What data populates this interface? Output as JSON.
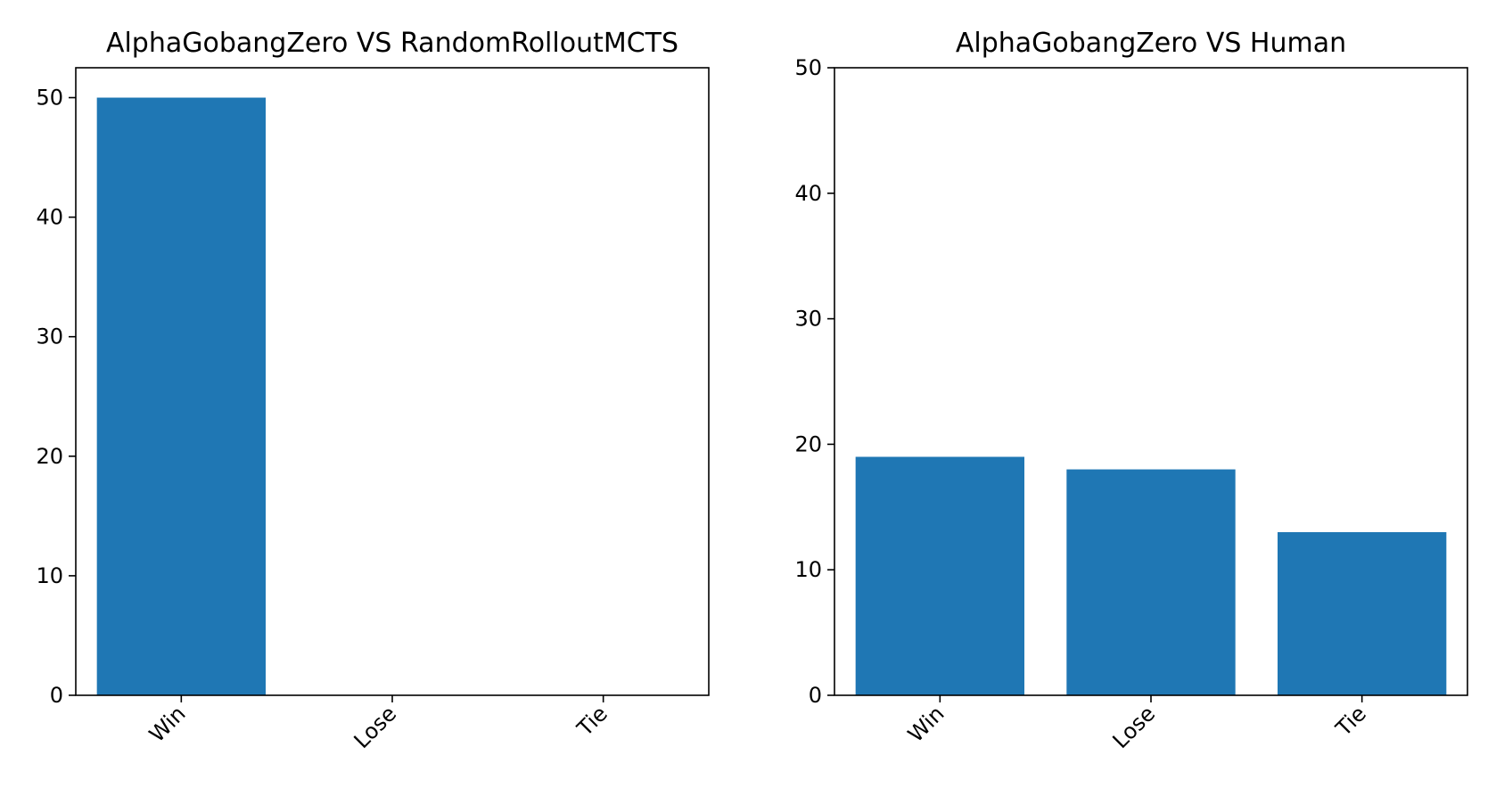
{
  "chart_data": [
    {
      "type": "bar",
      "title": "AlphaGobangZero VS RandomRolloutMCTS",
      "xlabel": "",
      "ylabel": "",
      "categories": [
        "Win",
        "Lose",
        "Tie"
      ],
      "values": [
        50,
        0,
        0
      ],
      "ylim": [
        0,
        52.5
      ],
      "yticks": [
        0,
        10,
        20,
        30,
        40,
        50
      ],
      "grid": false,
      "legend": "none",
      "bar_color": "#1f77b4"
    },
    {
      "type": "bar",
      "title": "AlphaGobangZero VS Human",
      "xlabel": "",
      "ylabel": "",
      "categories": [
        "Win",
        "Lose",
        "Tie"
      ],
      "values": [
        19,
        18,
        13
      ],
      "ylim": [
        0,
        50
      ],
      "yticks": [
        0,
        10,
        20,
        30,
        40,
        50
      ],
      "grid": false,
      "legend": "none",
      "bar_color": "#1f77b4"
    }
  ]
}
